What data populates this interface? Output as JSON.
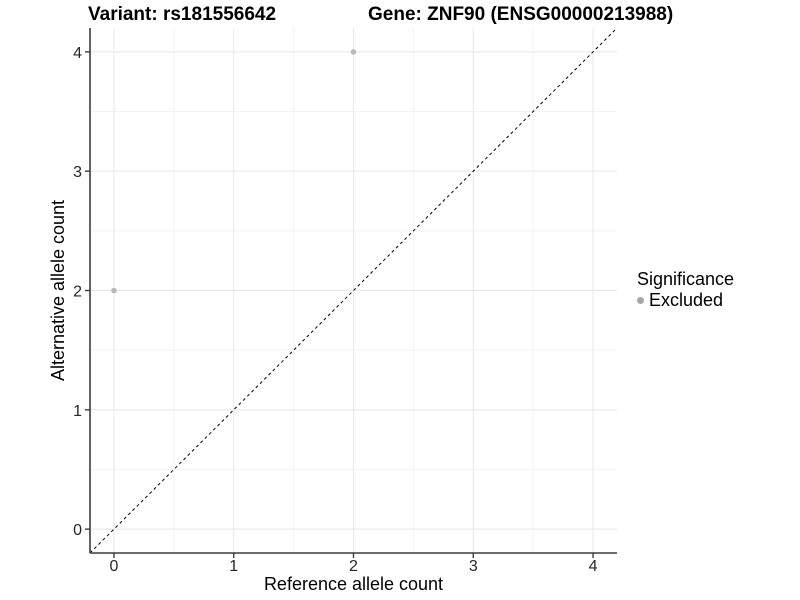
{
  "chart_data": {
    "type": "scatter",
    "title_left": "Variant: rs181556642",
    "title_right": "Gene: ZNF90 (ENSG00000213988)",
    "xlabel": "Reference allele count",
    "ylabel": "Alternative allele count",
    "xlim": [
      -0.2,
      4.2
    ],
    "ylim": [
      -0.2,
      4.2
    ],
    "x_ticks": [
      0,
      1,
      2,
      3,
      4
    ],
    "y_ticks": [
      0,
      1,
      2,
      3,
      4
    ],
    "x_minor_ticks": [
      0.5,
      1.5,
      2.5,
      3.5
    ],
    "y_minor_ticks": [
      0.5,
      1.5,
      2.5,
      3.5
    ],
    "grid": true,
    "legend_position": "right",
    "series": [
      {
        "name": "Excluded",
        "color": "#b9b9b9",
        "point_radius": 2.8,
        "points": [
          {
            "x": 0,
            "y": 2
          },
          {
            "x": 2,
            "y": 4
          }
        ]
      }
    ],
    "reference_line": {
      "type": "identity",
      "line_style": "dashed",
      "color": "#000000"
    },
    "legend": {
      "title": "Significance",
      "items": [
        {
          "label": "Excluded",
          "color": "#a6a6a6"
        }
      ]
    },
    "colors": {
      "background": "#ffffff",
      "grid_major": "#e8e8e8",
      "grid_minor": "#f3f3f3",
      "axis_line": "#3c3c3c",
      "tick_mark": "#3c3c3c",
      "tick_label": "#262626",
      "axis_title": "#000000",
      "title": "#000000"
    }
  }
}
